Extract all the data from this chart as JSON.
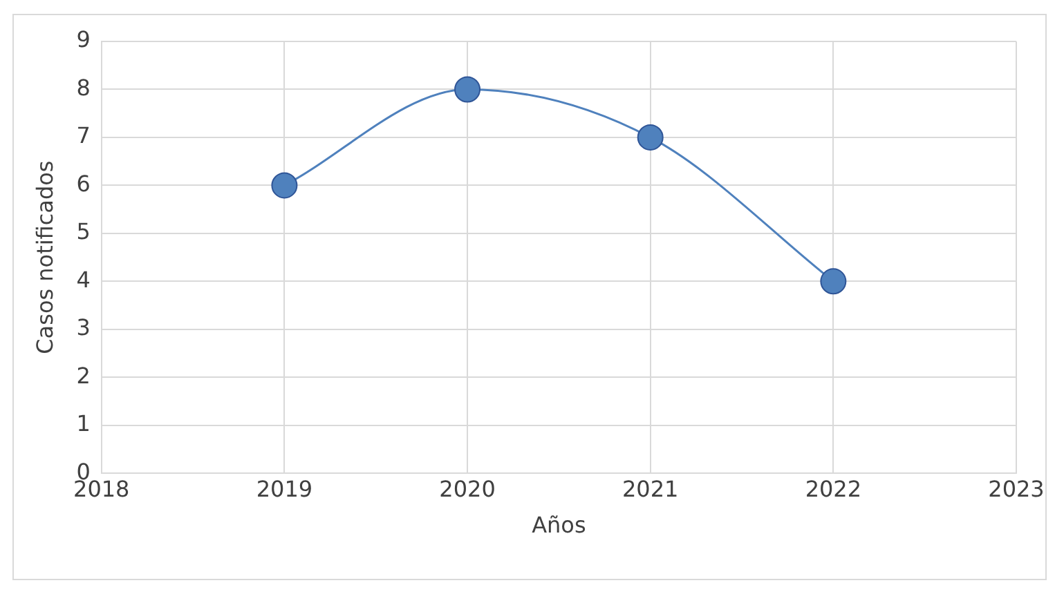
{
  "chart_data": {
    "type": "line",
    "xlabel": "Años",
    "ylabel": "Casos notificados",
    "x": [
      2019,
      2020,
      2021,
      2022
    ],
    "series": [
      {
        "color": "#4f81bd",
        "values": [
          6,
          8,
          7,
          4
        ]
      }
    ],
    "xlim": [
      2018,
      2023
    ],
    "xticks": [
      2018,
      2019,
      2020,
      2021,
      2022,
      2023
    ],
    "ylim": [
      0,
      9
    ],
    "yticks": [
      0,
      1,
      2,
      3,
      4,
      5,
      6,
      7,
      8,
      9
    ],
    "grid": true,
    "legend": false,
    "marker": "circle",
    "line_style": "solid"
  }
}
